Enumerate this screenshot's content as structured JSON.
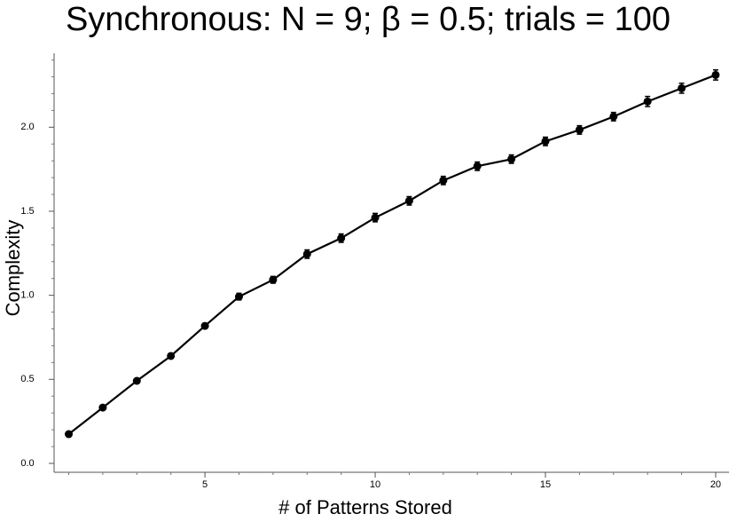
{
  "chart_data": {
    "type": "line",
    "title": "Synchronous: N = 9; β = 0.5; trials = 100",
    "xlabel": "# of Patterns Stored",
    "ylabel": "Complexity",
    "x": [
      1,
      2,
      3,
      4,
      5,
      6,
      7,
      8,
      9,
      10,
      11,
      12,
      13,
      14,
      15,
      16,
      17,
      18,
      19,
      20
    ],
    "values": [
      0.174,
      0.332,
      0.491,
      0.639,
      0.818,
      0.992,
      1.092,
      1.245,
      1.34,
      1.462,
      1.562,
      1.683,
      1.768,
      1.81,
      1.916,
      1.984,
      2.063,
      2.153,
      2.232,
      2.311
    ],
    "errors": [
      0.01,
      0.01,
      0.01,
      0.012,
      0.015,
      0.02,
      0.02,
      0.025,
      0.025,
      0.025,
      0.025,
      0.025,
      0.025,
      0.025,
      0.025,
      0.025,
      0.025,
      0.03,
      0.03,
      0.03
    ],
    "color": "#000000",
    "xlim": [
      0.57,
      20.34
    ],
    "ylim": [
      -0.053,
      2.44
    ],
    "xticks": [
      5,
      10,
      15,
      20
    ],
    "xminorticks": [
      1,
      2,
      3,
      4,
      6,
      7,
      8,
      9,
      11,
      12,
      13,
      14,
      16,
      17,
      18,
      19
    ],
    "yticks": [
      {
        "value": 0,
        "label": "0.0"
      },
      0.5,
      {
        "value": 1,
        "label": "1.0"
      },
      1.5,
      {
        "value": 2,
        "label": "2.0"
      }
    ],
    "yminorticks": [
      0.1,
      0.2,
      0.3,
      0.4,
      0.6,
      0.7,
      0.8,
      0.9,
      1.1,
      1.2,
      1.3,
      1.4,
      1.6,
      1.7,
      1.8,
      1.9,
      2.1,
      2.2,
      2.3,
      2.4
    ]
  }
}
